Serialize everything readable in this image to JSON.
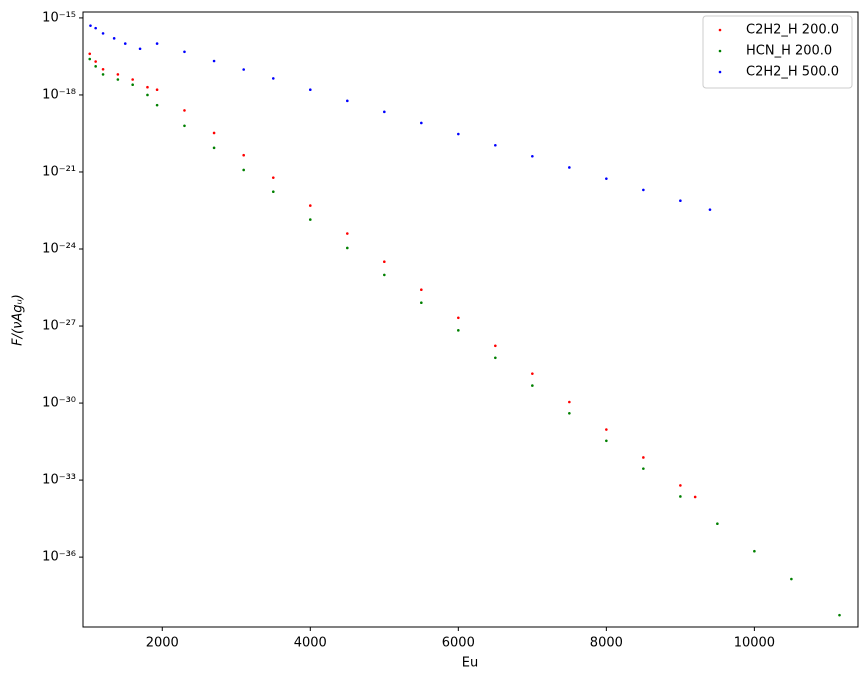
{
  "chart_data": {
    "type": "scatter",
    "x_label": "Eu",
    "y_label": "F/(νAgᵤ)",
    "log_y": true,
    "legend_position": "upper right",
    "xlim": [
      929,
      11400
    ],
    "xticks": [
      2000,
      4000,
      6000,
      8000,
      10000
    ],
    "ylim": [
      1.9e-39,
      1.7e-15
    ],
    "yticks": [
      {
        "value": 1e-15,
        "label": "10⁻¹⁵"
      },
      {
        "value": 1e-18,
        "label": "10⁻¹⁸"
      },
      {
        "value": 1e-21,
        "label": "10⁻²¹"
      },
      {
        "value": 1e-24,
        "label": "10⁻²⁴"
      },
      {
        "value": 1e-27,
        "label": "10⁻²⁷"
      },
      {
        "value": 1e-30,
        "label": "10⁻³⁰"
      },
      {
        "value": 1e-33,
        "label": "10⁻³³"
      },
      {
        "value": 1e-36,
        "label": "10⁻³⁶"
      }
    ],
    "series": [
      {
        "name": "C2H2_H 200.0",
        "color": "#ff0000",
        "x": [
          1020,
          1100,
          1200,
          1400,
          1600,
          1800,
          1930,
          2300,
          2700,
          3100,
          3500,
          4000,
          4500,
          5000,
          5500,
          6000,
          6500,
          7000,
          7500,
          8000,
          8500,
          9000,
          9200
        ],
        "values": [
          4e-17,
          2e-17,
          1e-17,
          6.3e-18,
          4e-18,
          2e-18,
          1.6e-18,
          2.5e-19,
          3.3e-20,
          4.5e-21,
          6e-22,
          4.9e-23,
          4e-24,
          3.2e-25,
          2.6e-26,
          2.1e-27,
          1.7e-28,
          1.4e-29,
          1.1e-30,
          9.3e-32,
          7.6e-33,
          6.2e-34,
          2.2e-34
        ]
      },
      {
        "name": "HCN_H 200.0",
        "color": "#008000",
        "x": [
          1020,
          1100,
          1200,
          1400,
          1600,
          1800,
          1930,
          2300,
          2700,
          3100,
          3500,
          4000,
          4500,
          5000,
          5500,
          6000,
          6500,
          7000,
          7500,
          8000,
          8500,
          9000,
          9500,
          10000,
          10500,
          11150
        ],
        "values": [
          2.5e-17,
          1.3e-17,
          6.3e-18,
          4e-18,
          2.5e-18,
          1e-18,
          4e-19,
          6.3e-20,
          8.7e-21,
          1.2e-21,
          1.7e-22,
          1.4e-23,
          1.1e-24,
          9.8e-26,
          8.1e-27,
          6.8e-28,
          5.8e-29,
          4.8e-30,
          4e-31,
          3.4e-32,
          2.8e-33,
          2.3e-34,
          2e-35,
          1.7e-36,
          1.4e-37,
          5.5e-39
        ]
      },
      {
        "name": "C2H2_H 500.0",
        "color": "#0000ff",
        "x": [
          1030,
          1100,
          1200,
          1350,
          1500,
          1700,
          1930,
          2300,
          2700,
          3100,
          3500,
          4000,
          4500,
          5000,
          5500,
          6000,
          6500,
          7000,
          7500,
          8000,
          8500,
          9000,
          9400
        ],
        "values": [
          5e-16,
          4e-16,
          2.5e-16,
          1.6e-16,
          1e-16,
          6.3e-17,
          1e-16,
          4.8e-17,
          2.1e-17,
          9.8e-18,
          4.4e-18,
          1.6e-18,
          5.9e-19,
          2.2e-19,
          8.1e-20,
          3e-20,
          1.1e-20,
          4.1e-21,
          1.5e-21,
          5.5e-22,
          2e-22,
          7.6e-23,
          3.4e-23
        ]
      }
    ]
  }
}
